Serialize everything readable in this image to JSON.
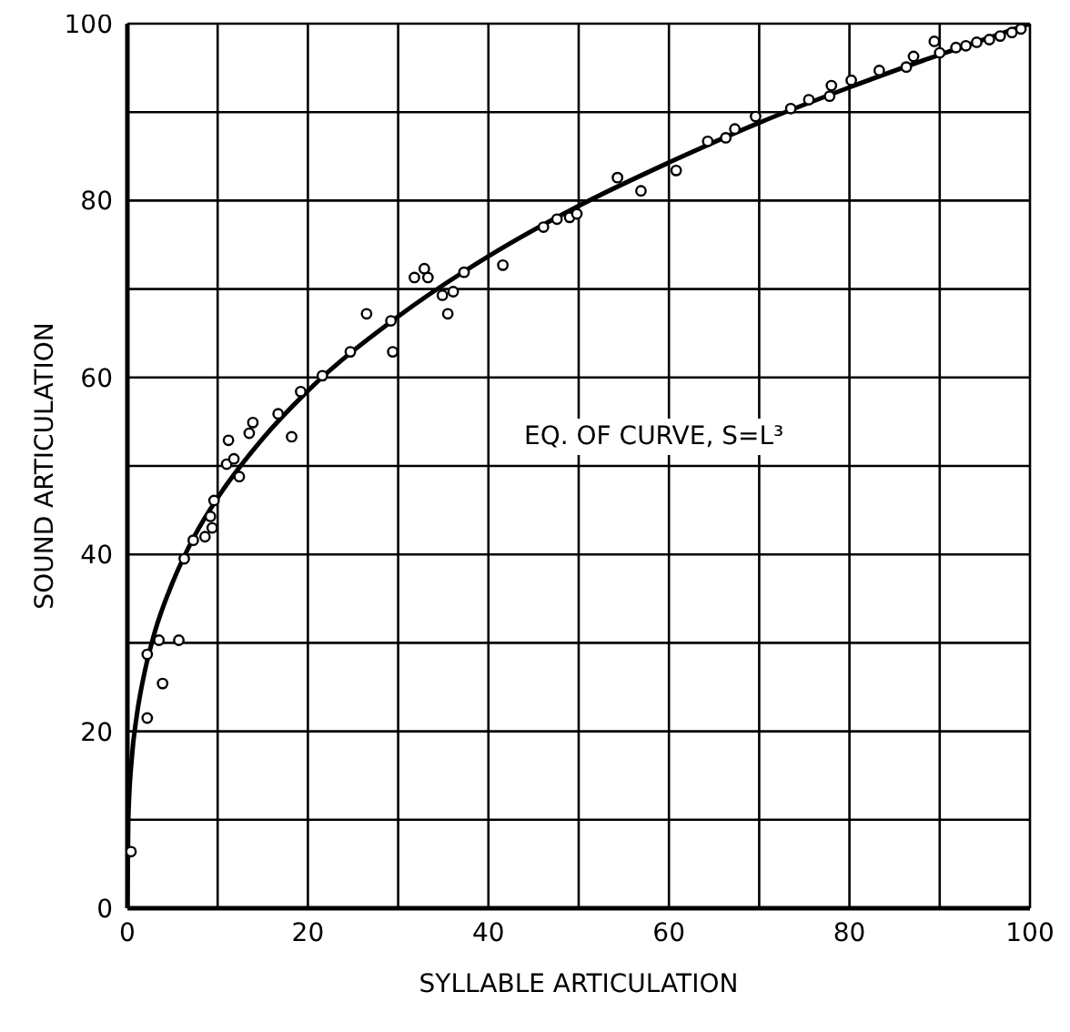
{
  "chart_data": {
    "type": "scatter",
    "xlabel": "SYLLABLE ARTICULATION",
    "ylabel": "SOUND ARTICULATION",
    "annotations": [
      "EQ. OF CURVE, S=L³"
    ],
    "xlim": [
      0,
      100
    ],
    "ylim": [
      0,
      100
    ],
    "xticks": [
      0,
      {
        "value": 10,
        "label": null
      },
      20,
      {
        "value": 30,
        "label": null
      },
      40,
      {
        "value": 50,
        "label": null
      },
      60,
      {
        "value": 70,
        "label": null
      },
      80,
      {
        "value": 90,
        "label": null
      },
      100
    ],
    "yticks": [
      0,
      {
        "value": 10,
        "label": null
      },
      20,
      {
        "value": 30,
        "label": null
      },
      40,
      {
        "value": 50,
        "label": null
      },
      60,
      {
        "value": 70,
        "label": null
      },
      80,
      {
        "value": 90,
        "label": null
      },
      100
    ],
    "grid": true,
    "marker": "circle",
    "series": [
      {
        "color": "#000000",
        "x": [
          0.4,
          2.2,
          2.2,
          3.5,
          3.9,
          5.7,
          6.3,
          7.3,
          8.6,
          9.2,
          9.4,
          9.6,
          11,
          11.2,
          11.8,
          12.4,
          13.5,
          13.9,
          16.7,
          18.2,
          19.2,
          21.6,
          24.7,
          26.5,
          29.2,
          29.4,
          31.8,
          32.9,
          33.3,
          34.9,
          35.5,
          36.1,
          37.3,
          41.6,
          46.1,
          47.6,
          49,
          49.8,
          54.3,
          56.9,
          60.8,
          64.3,
          66.3,
          67.3,
          69.6,
          73.5,
          75.5,
          77.8,
          78,
          80.2,
          83.3,
          86.3,
          87.1,
          89.4,
          90,
          91.8,
          92.9,
          94.1,
          95.5,
          96.7,
          98,
          99
        ],
        "values": [
          6.4,
          21.5,
          28.7,
          30.3,
          25.4,
          30.3,
          39.5,
          41.6,
          42,
          44.3,
          43,
          46.1,
          50.2,
          52.9,
          50.8,
          48.8,
          53.7,
          54.9,
          55.9,
          53.3,
          58.4,
          60.2,
          62.9,
          67.2,
          66.4,
          62.9,
          71.3,
          72.3,
          71.3,
          69.3,
          67.2,
          69.7,
          71.9,
          72.7,
          77,
          77.9,
          78.1,
          78.5,
          82.6,
          81.1,
          83.4,
          86.7,
          87.1,
          88.1,
          89.5,
          90.4,
          91.4,
          91.8,
          93,
          93.6,
          94.7,
          95.1,
          96.3,
          98,
          96.7,
          97.3,
          97.5,
          97.9,
          98.2,
          98.6,
          99,
          99.4
        ]
      },
      {
        "type": "line",
        "color": "#000000",
        "marker": "none",
        "line_style": "solid",
        "x": [
          0,
          0.1,
          0.5,
          1,
          2,
          3,
          5,
          7.5,
          10,
          15,
          20,
          30,
          40,
          50,
          60,
          70,
          80,
          90,
          100
        ],
        "values": [
          0,
          10,
          17.1,
          21.5,
          27.1,
          31.1,
          36.8,
          42.2,
          46.4,
          53.1,
          58.5,
          66.9,
          73.7,
          79.4,
          84.3,
          88.8,
          92.8,
          96.5,
          100
        ]
      }
    ]
  }
}
